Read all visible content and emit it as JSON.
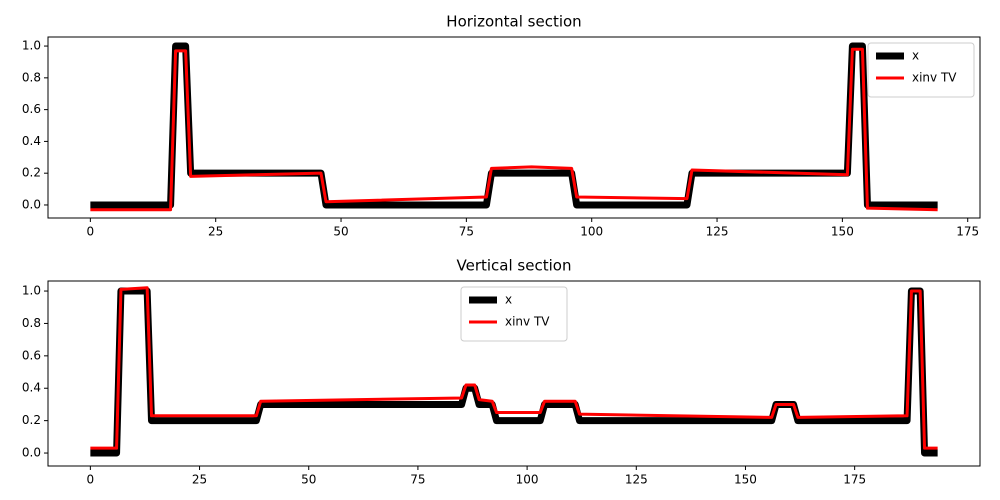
{
  "chart_data": [
    {
      "type": "line",
      "title": "Horizontal section",
      "x": [
        0,
        16,
        17,
        19,
        20,
        33,
        46,
        47,
        79,
        80,
        88,
        96,
        97,
        119,
        120,
        151,
        152,
        154,
        155,
        169
      ],
      "series": [
        {
          "name": "x",
          "color": "#000000",
          "values": [
            0,
            0,
            1,
            1,
            0.2,
            0.2,
            0.2,
            0,
            0,
            0.2,
            0.2,
            0.2,
            0,
            0,
            0.2,
            0.2,
            1,
            1,
            0,
            0
          ]
        },
        {
          "name": "xinv TV",
          "color": "#ff0000",
          "values": [
            -0.03,
            -0.03,
            0.97,
            0.97,
            0.18,
            0.19,
            0.2,
            0.02,
            0.05,
            0.23,
            0.24,
            0.23,
            0.05,
            0.04,
            0.22,
            0.19,
            0.98,
            0.98,
            -0.02,
            -0.03
          ]
        }
      ],
      "xlim": [
        -8.45,
        177.45
      ],
      "xticks": [
        0,
        25,
        50,
        75,
        100,
        125,
        150,
        175
      ],
      "ylim": [
        -0.082,
        1.057
      ],
      "yticks": [
        {
          "value": 0,
          "label": "0.0"
        },
        0.2,
        0.4,
        0.6,
        0.8,
        {
          "value": 1,
          "label": "1.0"
        }
      ],
      "legend": "upper-right",
      "grid": false
    },
    {
      "type": "line",
      "title": "Vertical section",
      "x": [
        0,
        6,
        7,
        13,
        14,
        38,
        39,
        85,
        86,
        88,
        89,
        92,
        93,
        103,
        104,
        111,
        112,
        156,
        157,
        161,
        162,
        187,
        188,
        190,
        191,
        194
      ],
      "series": [
        {
          "name": "x",
          "color": "#000000",
          "values": [
            0,
            0,
            1,
            1,
            0.2,
            0.2,
            0.3,
            0.3,
            0.4,
            0.4,
            0.3,
            0.3,
            0.2,
            0.2,
            0.3,
            0.3,
            0.2,
            0.2,
            0.3,
            0.3,
            0.2,
            0.2,
            1,
            1,
            0,
            0
          ]
        },
        {
          "name": "xinv TV",
          "color": "#ff0000",
          "values": [
            0.03,
            0.03,
            1.01,
            1.02,
            0.23,
            0.23,
            0.32,
            0.34,
            0.42,
            0.42,
            0.33,
            0.32,
            0.25,
            0.25,
            0.32,
            0.32,
            0.24,
            0.22,
            0.3,
            0.3,
            0.22,
            0.23,
            1,
            1,
            0.03,
            0.03
          ]
        }
      ],
      "xlim": [
        -9.7,
        203.7
      ],
      "xticks": [
        0,
        25,
        50,
        75,
        100,
        125,
        150,
        175
      ],
      "ylim": [
        -0.08,
        1.062
      ],
      "yticks": [
        {
          "value": 0,
          "label": "0.0"
        },
        0.2,
        0.4,
        0.6,
        0.8,
        {
          "value": 1,
          "label": "1.0"
        }
      ],
      "legend": "upper-center",
      "grid": false
    }
  ]
}
